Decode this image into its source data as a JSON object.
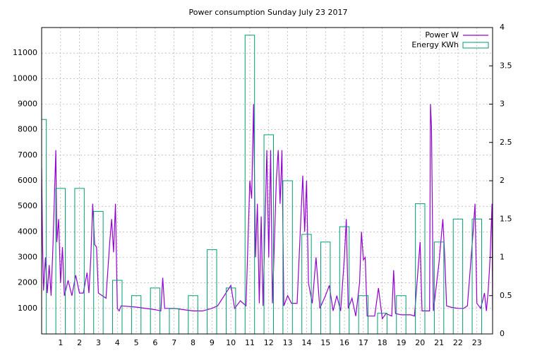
{
  "chart_data": {
    "type": "line",
    "title": "Power consumption Sunday July 23 2017",
    "xlim": [
      0,
      23.83
    ],
    "xticks": [
      1,
      2,
      3,
      4,
      5,
      6,
      7,
      8,
      9,
      10,
      11,
      12,
      13,
      14,
      15,
      16,
      17,
      18,
      19,
      20,
      21,
      22,
      23
    ],
    "ylim": [
      0,
      12000
    ],
    "yticks": [
      1000,
      2000,
      3000,
      4000,
      5000,
      6000,
      7000,
      8000,
      9000,
      10000,
      11000
    ],
    "y2lim": [
      0,
      4
    ],
    "y2ticks": [
      0,
      0.5,
      1,
      1.5,
      2,
      2.5,
      3,
      3.5,
      4
    ],
    "grid": true,
    "legend": "top-right",
    "series": [
      {
        "name": "Power W",
        "color": "#9400d3",
        "kind": "line",
        "x": [
          0,
          0.05,
          0.1,
          0.2,
          0.3,
          0.4,
          0.5,
          0.6,
          0.7,
          0.75,
          0.8,
          0.9,
          1.0,
          1.1,
          1.2,
          1.4,
          1.6,
          1.8,
          2.0,
          2.2,
          2.4,
          2.5,
          2.6,
          2.7,
          2.8,
          2.9,
          3.0,
          3.2,
          3.4,
          3.6,
          3.7,
          3.8,
          3.9,
          4.0,
          4.1,
          4.2,
          5.0,
          6.0,
          6.3,
          6.4,
          6.5,
          7.0,
          7.5,
          8.0,
          8.5,
          9.0,
          9.3,
          10.0,
          10.2,
          10.5,
          10.8,
          11.0,
          11.1,
          11.2,
          11.3,
          11.4,
          11.5,
          11.6,
          11.7,
          11.9,
          12.0,
          12.1,
          12.2,
          12.4,
          12.5,
          12.6,
          12.7,
          12.8,
          13.0,
          13.2,
          13.5,
          13.8,
          13.9,
          14.0,
          14.1,
          14.3,
          14.5,
          14.7,
          15.0,
          15.2,
          15.4,
          15.6,
          15.8,
          16.0,
          16.1,
          16.2,
          16.4,
          16.6,
          16.8,
          16.9,
          17.0,
          17.1,
          17.2,
          17.6,
          17.8,
          18.0,
          18.2,
          18.5,
          18.6,
          18.7,
          19.0,
          19.5,
          19.7,
          20.0,
          20.1,
          20.5,
          20.55,
          20.6,
          20.7,
          21.0,
          21.2,
          21.3,
          21.4,
          21.6,
          22.0,
          22.3,
          22.5,
          22.8,
          22.9,
          23.0,
          23.2,
          23.4,
          23.5,
          23.6,
          23.7,
          23.8,
          23.83
        ],
        "values": [
          6500,
          3500,
          1700,
          3000,
          1600,
          2700,
          1500,
          3500,
          6000,
          7200,
          3600,
          4500,
          2000,
          3400,
          1500,
          2100,
          1500,
          2300,
          1600,
          1600,
          2400,
          1600,
          3000,
          5100,
          3500,
          3400,
          1600,
          1500,
          1400,
          3600,
          4500,
          3200,
          5100,
          1000,
          900,
          1100,
          1050,
          950,
          900,
          2200,
          1000,
          1000,
          950,
          900,
          900,
          1000,
          1100,
          1900,
          1000,
          1300,
          1100,
          6000,
          5300,
          9000,
          3000,
          5100,
          1200,
          4600,
          1100,
          7200,
          3000,
          7200,
          1200,
          6000,
          7200,
          5100,
          7200,
          1100,
          1500,
          1200,
          1200,
          6200,
          4000,
          6000,
          2000,
          1200,
          3000,
          1000,
          1500,
          1900,
          900,
          1500,
          900,
          3000,
          4500,
          1000,
          1400,
          700,
          2000,
          4000,
          2900,
          3000,
          700,
          700,
          1800,
          600,
          800,
          700,
          2500,
          800,
          750,
          750,
          700,
          3600,
          900,
          900,
          9000,
          8100,
          900,
          2800,
          4500,
          3000,
          1100,
          1050,
          1000,
          1000,
          1100,
          4000,
          5100,
          1200,
          1000,
          1600,
          900,
          1700,
          3000,
          5100,
          900
        ]
      },
      {
        "name": "Energy KWh",
        "color": "#009e73",
        "kind": "boxes",
        "axis": "y2",
        "x": [
          0,
          1,
          2,
          3,
          4,
          5,
          6,
          7,
          8,
          9,
          10,
          11,
          12,
          13,
          14,
          15,
          16,
          17,
          18,
          19,
          20,
          21,
          22,
          23
        ],
        "values": [
          2.8,
          1.9,
          1.9,
          1.6,
          0.7,
          0.5,
          0.6,
          0.33,
          0.5,
          1.1,
          0.6,
          3.9,
          2.6,
          2.0,
          1.3,
          1.2,
          1.4,
          0.5,
          0.27,
          0.5,
          1.7,
          1.2,
          1.5,
          1.5
        ]
      }
    ]
  }
}
